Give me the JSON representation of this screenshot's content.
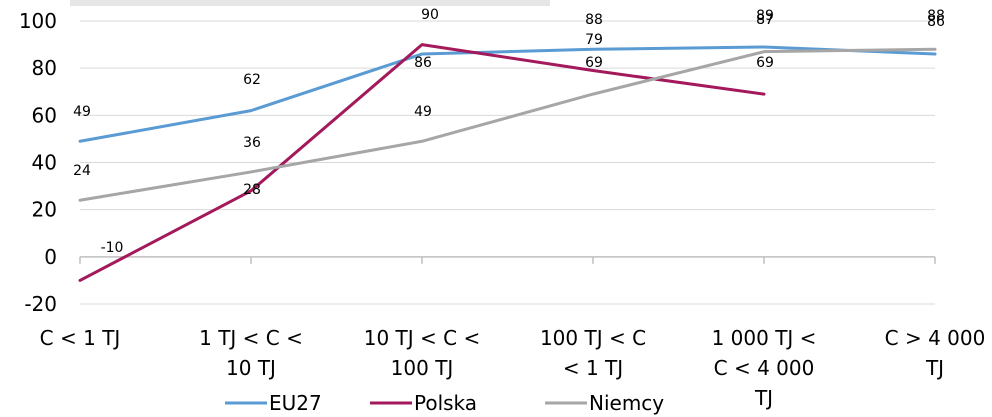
{
  "chart_data": {
    "type": "line",
    "title": "",
    "xlabel": "",
    "ylabel": "",
    "ylim": [
      -20,
      100
    ],
    "yticks": [
      "-20",
      "0",
      "20",
      "40",
      "60",
      "80",
      "100"
    ],
    "grid": "horizontal",
    "legend_position": "bottom",
    "categories": [
      [
        "C < 1 TJ"
      ],
      [
        "1 TJ < C <",
        "10 TJ"
      ],
      [
        "10 TJ < C <",
        "100 TJ"
      ],
      [
        "100 TJ < C",
        "< 1 TJ"
      ],
      [
        "1 000 TJ <",
        "C < 4 000",
        "TJ"
      ],
      [
        "C > 4 000",
        "TJ"
      ]
    ],
    "series": [
      {
        "name": "EU27",
        "color": "#5a9bd3",
        "values": [
          49,
          62,
          86,
          88,
          89,
          86
        ]
      },
      {
        "name": "Polska",
        "color": "#a3195b",
        "values": [
          -10,
          28,
          90,
          79,
          69,
          null
        ]
      },
      {
        "name": "Niemcy",
        "color": "#a6a6a6",
        "values": [
          24,
          36,
          49,
          69,
          87,
          88
        ]
      }
    ],
    "data_labels": [
      [
        "-10",
        "24",
        "49"
      ],
      [
        "28",
        "36",
        "62"
      ],
      [
        "49",
        "86",
        "90"
      ],
      [
        "69",
        "79",
        "88"
      ],
      [
        "69",
        "87",
        "89"
      ],
      [
        "86",
        "88"
      ]
    ]
  }
}
